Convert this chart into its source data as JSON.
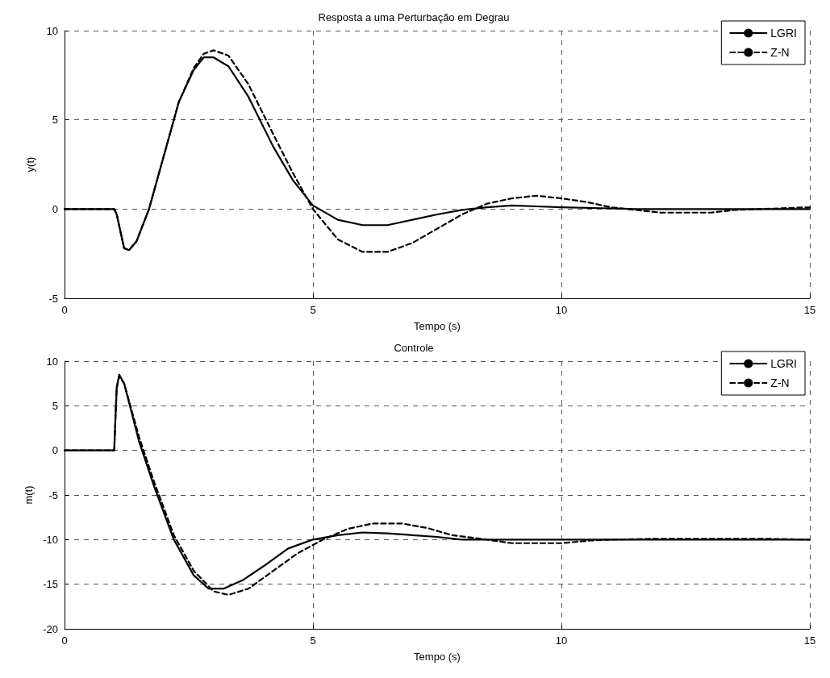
{
  "chart_data": [
    {
      "type": "line",
      "title": "Resposta a uma Perturbação em Degrau",
      "xlabel": "Tempo (s)",
      "ylabel": "y(t)",
      "xlim": [
        0,
        15
      ],
      "xticks": [
        0,
        5,
        10,
        15
      ],
      "ylim": [
        -5,
        10
      ],
      "yticks": [
        -5,
        0,
        5,
        10
      ],
      "grid": true,
      "legend": "top right",
      "marker": "none",
      "series": [
        {
          "name": "LGRI",
          "color": "#000000",
          "line_style": "solid",
          "x": [
            0,
            1.0,
            1.05,
            1.2,
            1.3,
            1.45,
            1.7,
            2.0,
            2.3,
            2.6,
            2.8,
            3.0,
            3.3,
            3.7,
            4.2,
            4.6,
            5.0,
            5.5,
            6.0,
            6.5,
            7.0,
            7.5,
            8.0,
            8.5,
            9.0,
            9.5,
            10,
            10.8,
            11.5,
            15
          ],
          "values": [
            0,
            0,
            -0.3,
            -2.2,
            -2.3,
            -1.8,
            0,
            3,
            6,
            7.8,
            8.5,
            8.5,
            8,
            6.3,
            3.5,
            1.6,
            0.2,
            -0.6,
            -0.9,
            -0.9,
            -0.6,
            -0.3,
            -0.05,
            0.1,
            0.2,
            0.15,
            0.1,
            0.05,
            0,
            0
          ]
        },
        {
          "name": "Z-N",
          "color": "#000000",
          "line_style": "dashed",
          "x": [
            0,
            1.0,
            1.05,
            1.2,
            1.3,
            1.45,
            1.7,
            2.0,
            2.3,
            2.6,
            2.8,
            3.0,
            3.3,
            3.7,
            4.2,
            4.6,
            5.0,
            5.5,
            6.0,
            6.5,
            7.0,
            7.5,
            8.0,
            8.5,
            9.0,
            9.5,
            10,
            10.5,
            11,
            12,
            13,
            13.5,
            14,
            15
          ],
          "values": [
            0,
            0,
            -0.3,
            -2.2,
            -2.3,
            -1.8,
            0,
            3,
            6,
            7.9,
            8.7,
            8.9,
            8.6,
            7,
            4.2,
            2,
            0,
            -1.7,
            -2.4,
            -2.4,
            -1.9,
            -1.1,
            -0.3,
            0.3,
            0.6,
            0.75,
            0.6,
            0.4,
            0.1,
            -0.2,
            -0.2,
            -0.05,
            0,
            0.1
          ]
        }
      ]
    },
    {
      "type": "line",
      "title": "Controle",
      "xlabel": "Tempo (s)",
      "ylabel": "m(t)",
      "xlim": [
        0,
        15
      ],
      "xticks": [
        0,
        5,
        10,
        15
      ],
      "ylim": [
        -20,
        10
      ],
      "yticks": [
        -20,
        -15,
        -10,
        -5,
        0,
        5,
        10
      ],
      "grid": true,
      "legend": "top right",
      "marker": "none",
      "series": [
        {
          "name": "LGRI",
          "color": "#000000",
          "line_style": "solid",
          "x": [
            0,
            1.0,
            1.02,
            1.05,
            1.1,
            1.2,
            1.5,
            1.8,
            2.2,
            2.6,
            2.9,
            3.2,
            3.6,
            4.0,
            4.5,
            5.0,
            5.5,
            6.0,
            6.5,
            7.0,
            7.5,
            8.0,
            9,
            15
          ],
          "values": [
            0,
            0,
            3,
            7,
            8.5,
            7.5,
            1,
            -4,
            -10,
            -14,
            -15.5,
            -15.5,
            -14.5,
            -13,
            -11,
            -10,
            -9.5,
            -9.2,
            -9.3,
            -9.5,
            -9.7,
            -10,
            -10,
            -10
          ]
        },
        {
          "name": "Z-N",
          "color": "#000000",
          "line_style": "dashed",
          "x": [
            0,
            1.0,
            1.05,
            1.1,
            1.2,
            1.5,
            1.8,
            2.2,
            2.6,
            3.0,
            3.3,
            3.7,
            4.2,
            4.7,
            5.2,
            5.7,
            6.2,
            6.8,
            7.3,
            7.8,
            8.5,
            9.0,
            10,
            10.6,
            11,
            12,
            14,
            15
          ],
          "values": [
            0,
            0,
            7,
            8.3,
            7.5,
            1.5,
            -3.5,
            -9.5,
            -13.5,
            -15.8,
            -16.2,
            -15.5,
            -13.5,
            -11.5,
            -10,
            -8.8,
            -8.2,
            -8.2,
            -8.7,
            -9.5,
            -10,
            -10.4,
            -10.4,
            -10.1,
            -10,
            -9.9,
            -9.9,
            -10
          ]
        }
      ]
    }
  ]
}
